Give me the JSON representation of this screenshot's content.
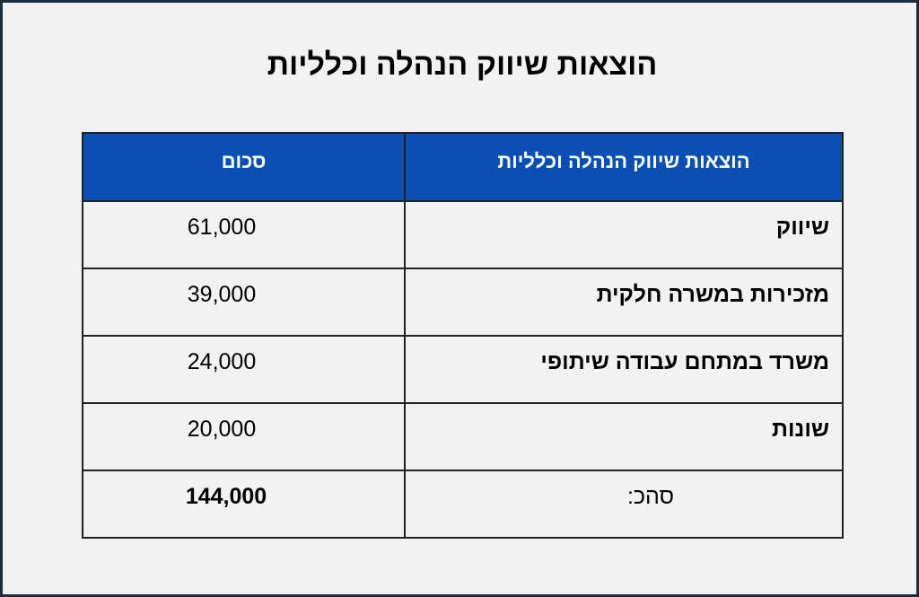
{
  "page": {
    "title": "הוצאות שיווק הנהלה וכלליות"
  },
  "table": {
    "headers": {
      "category": "הוצאות שיווק הנהלה וכלליות",
      "amount": "סכום"
    },
    "rows": [
      {
        "label": "שיווק",
        "amount": "61,000"
      },
      {
        "label": "מזכירות במשרה חלקית",
        "amount": "39,000"
      },
      {
        "label": "משרד במתחם עבודה שיתופי",
        "amount": "24,000"
      },
      {
        "label": "שונות",
        "amount": "20,000"
      }
    ],
    "total": {
      "label": "סהכ:",
      "amount": "144,000"
    }
  },
  "colors": {
    "header_bg": "#0a50b4",
    "page_bg": "#f2f2f2",
    "border": "#1c2e3d"
  }
}
